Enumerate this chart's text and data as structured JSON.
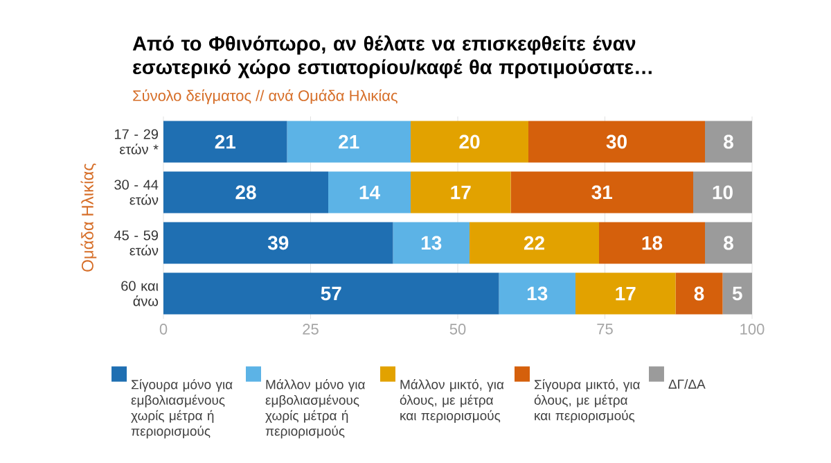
{
  "chart_data": {
    "type": "bar",
    "orientation": "horizontal",
    "stacked": true,
    "title": "Από το Φθινόπωρο, αν θέλατε να επισκεφθείτε έναν εσωτερικό χώρο εστιατορίου/καφέ θα προτιμούσατε…",
    "subtitle": "Σύνολο δείγματος // ανά Ομάδα Ηλικίας",
    "ylabel": "Ομάδα Ηλικίας",
    "categories": [
      "17 - 29 ετών *",
      "30 - 44 ετών",
      "45 - 59 ετών",
      "60 και άνω"
    ],
    "series": [
      {
        "name": "Σίγουρα μόνο για εμβολιασμένους χωρίς μέτρα ή περιορισμούς",
        "color": "#1f6fb2",
        "values": [
          21,
          28,
          39,
          57
        ]
      },
      {
        "name": "Μάλλον μόνο για εμβολιασμένους χωρίς μέτρα ή περιορισμούς",
        "color": "#5cb3e6",
        "values": [
          21,
          14,
          13,
          13
        ]
      },
      {
        "name": "Μάλλον μικτό, για όλους, με μέτρα και περιορισμούς",
        "color": "#e2a200",
        "values": [
          20,
          17,
          22,
          17
        ]
      },
      {
        "name": "Σίγουρα μικτό, για όλους, με μέτρα και περιορισμούς",
        "color": "#d5600c",
        "values": [
          30,
          31,
          18,
          8
        ]
      },
      {
        "name": "ΔΓ/ΔΑ",
        "color": "#9b9b9b",
        "values": [
          8,
          10,
          8,
          5
        ]
      }
    ],
    "xlim": [
      0,
      100
    ],
    "xticks": [
      0,
      25,
      50,
      75,
      100
    ],
    "grid": "x",
    "legend": "bottom",
    "data_labels": true
  }
}
